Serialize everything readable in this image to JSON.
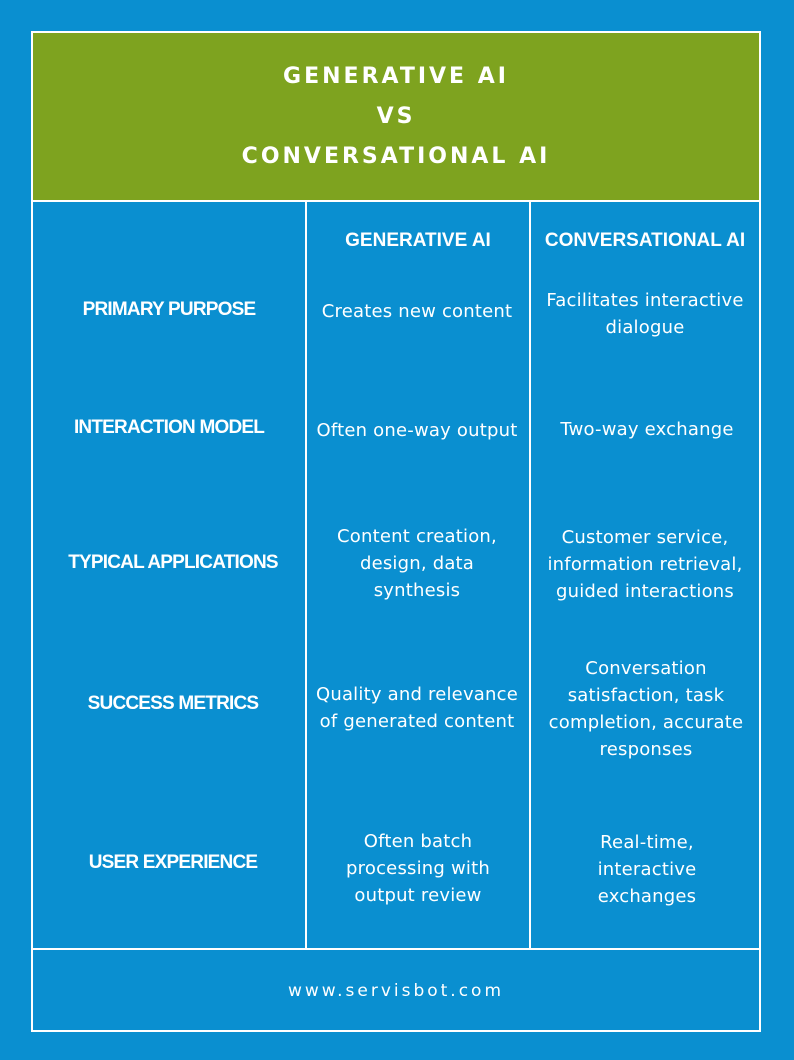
{
  "header": {
    "line1": "GENERATIVE AI",
    "line2": "VS",
    "line3": "CONVERSATIONAL AI"
  },
  "columns": {
    "generative": "GENERATIVE AI",
    "conversational": "CONVERSATIONAL AI"
  },
  "rows": [
    {
      "label": "PRIMARY PURPOSE",
      "generative": "Creates new content",
      "conversational": "Facilitates interactive dialogue"
    },
    {
      "label": "INTERACTION MODEL",
      "generative": "Often one-way output",
      "conversational": "Two-way exchange"
    },
    {
      "label": "TYPICAL APPLICATIONS",
      "generative": "Content creation, design, data synthesis",
      "conversational": "Customer service, information retrieval, guided interactions"
    },
    {
      "label": "SUCCESS METRICS",
      "generative": "Quality and relevance of generated content",
      "conversational": "Conversation satisfaction, task completion, accurate responses"
    },
    {
      "label": "USER EXPERIENCE",
      "generative": "Often batch processing with output review",
      "conversational": "Real-time, interactive exchanges"
    }
  ],
  "footer": {
    "url": "www.servisbot.com"
  },
  "colors": {
    "background": "#0a8fd0",
    "header": "#7ea31f",
    "text": "#ffffff"
  }
}
